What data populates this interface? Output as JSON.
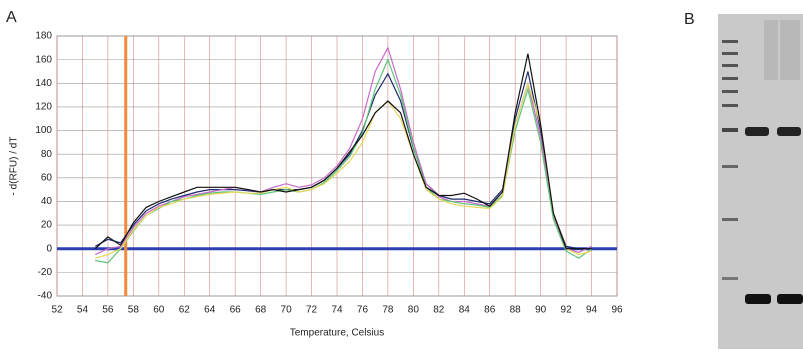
{
  "panel_labels": [
    "A",
    "B"
  ],
  "chart_data": {
    "type": "line",
    "xlabel": "Temperature, Celsius",
    "ylabel": "- d(RFU) / dT",
    "x": [
      55,
      56,
      57,
      58,
      59,
      60,
      61,
      62,
      63,
      64,
      65,
      66,
      67,
      68,
      69,
      70,
      71,
      72,
      73,
      74,
      75,
      76,
      77,
      78,
      79,
      80,
      81,
      82,
      83,
      84,
      85,
      86,
      87,
      88,
      89,
      90,
      91,
      92,
      93,
      94
    ],
    "series": [
      {
        "color": "#1c2a6e",
        "values": [
          2,
          8,
          5,
          20,
          32,
          38,
          42,
          45,
          48,
          50,
          50,
          50,
          49,
          48,
          50,
          50,
          50,
          52,
          58,
          68,
          80,
          100,
          130,
          148,
          125,
          85,
          55,
          45,
          42,
          42,
          40,
          38,
          50,
          110,
          150,
          100,
          30,
          2,
          0,
          0
        ]
      },
      {
        "color": "#c86bc8",
        "values": [
          -5,
          0,
          2,
          18,
          30,
          36,
          40,
          44,
          46,
          48,
          50,
          52,
          50,
          48,
          52,
          55,
          52,
          54,
          60,
          70,
          85,
          110,
          150,
          170,
          135,
          90,
          55,
          44,
          40,
          40,
          38,
          36,
          48,
          105,
          140,
          95,
          28,
          0,
          -3,
          2
        ]
      },
      {
        "color": "#5cc47a",
        "values": [
          -10,
          -12,
          0,
          15,
          28,
          34,
          40,
          42,
          45,
          47,
          48,
          48,
          47,
          46,
          48,
          50,
          48,
          50,
          56,
          66,
          78,
          98,
          135,
          160,
          130,
          86,
          52,
          42,
          40,
          38,
          37,
          35,
          45,
          100,
          135,
          90,
          25,
          -2,
          -8,
          0
        ]
      },
      {
        "color": "#e6d85a",
        "values": [
          -8,
          -5,
          0,
          16,
          28,
          35,
          38,
          42,
          44,
          46,
          47,
          48,
          47,
          47,
          50,
          52,
          48,
          50,
          55,
          64,
          74,
          90,
          115,
          125,
          110,
          80,
          50,
          42,
          38,
          36,
          35,
          34,
          44,
          105,
          140,
          105,
          30,
          0,
          -5,
          -2
        ]
      },
      {
        "color": "#111111",
        "values": [
          0,
          10,
          3,
          22,
          35,
          40,
          44,
          48,
          52,
          52,
          52,
          52,
          50,
          48,
          50,
          48,
          50,
          52,
          58,
          68,
          82,
          96,
          115,
          125,
          115,
          80,
          52,
          45,
          45,
          47,
          42,
          36,
          48,
          115,
          165,
          105,
          30,
          0,
          0,
          0
        ]
      }
    ],
    "xlim": [
      52,
      96
    ],
    "xticks": [
      52,
      54,
      56,
      58,
      60,
      62,
      64,
      66,
      68,
      70,
      72,
      74,
      76,
      78,
      80,
      82,
      84,
      86,
      88,
      90,
      92,
      94,
      96
    ],
    "ylim": [
      -40,
      180
    ],
    "yticks": [
      -40,
      -20,
      0,
      20,
      40,
      60,
      80,
      100,
      120,
      140,
      160,
      180
    ],
    "grid": true,
    "hline": 0,
    "hline_color": "#2b3fb0",
    "vline": 57.4,
    "vline_color": "#f08a3c"
  }
}
